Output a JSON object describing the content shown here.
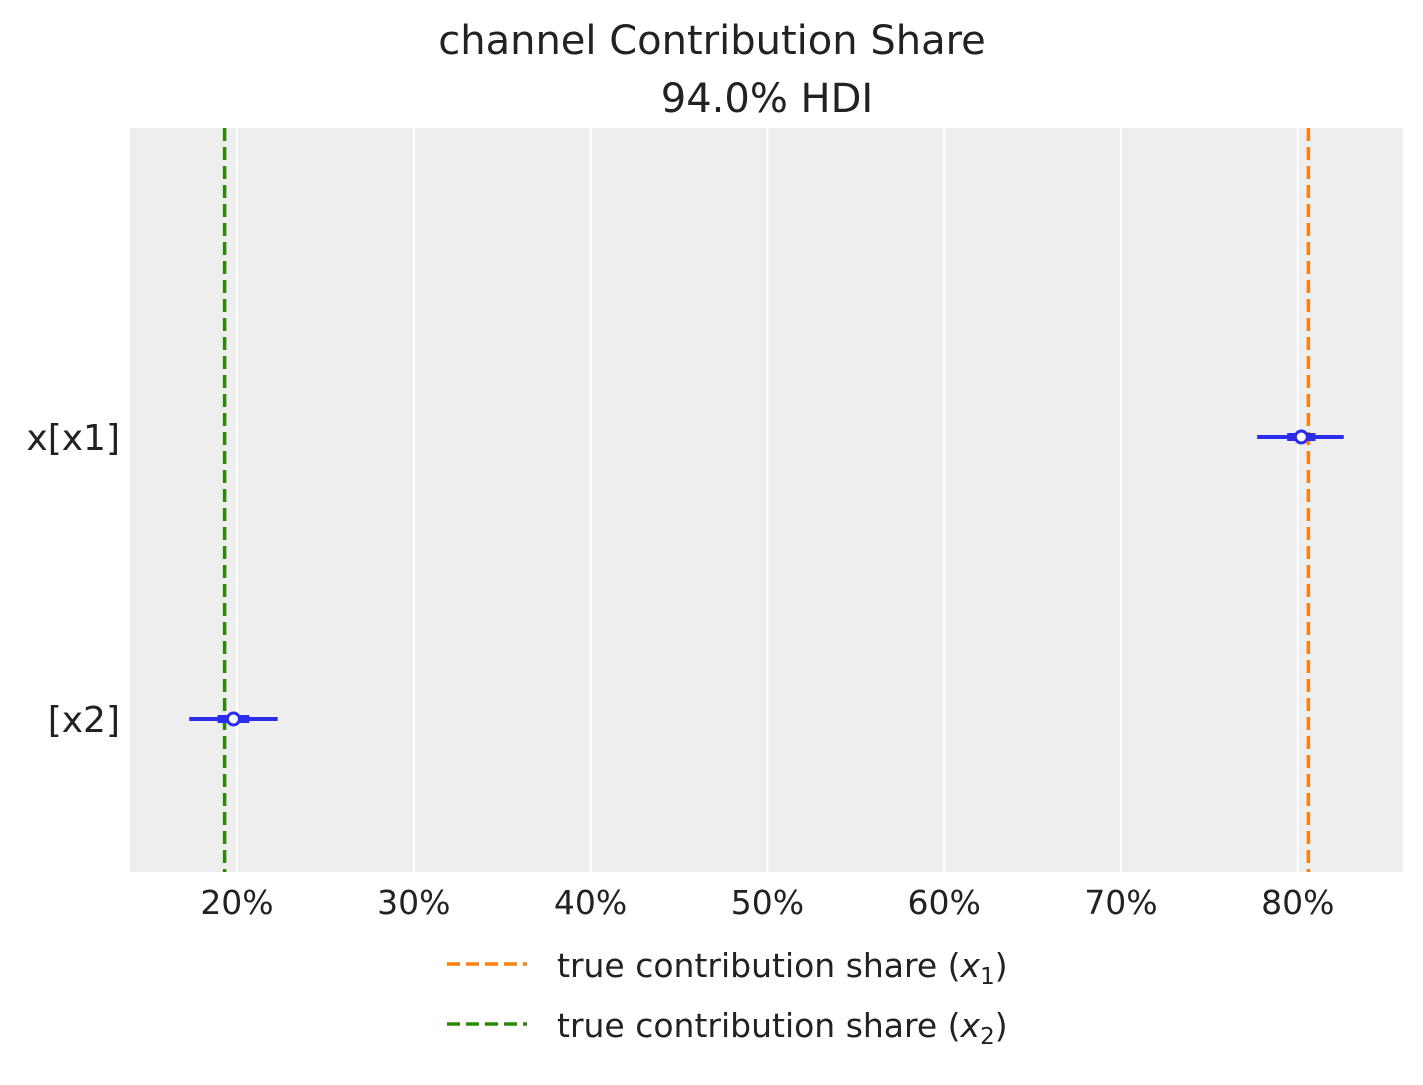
{
  "chart_data": {
    "type": "forest",
    "title": "channel Contribution Share",
    "subtitle": "94.0% HDI",
    "xlabel": "",
    "ylabel": "",
    "xlim": [
      14,
      86
    ],
    "xticks": [
      20,
      30,
      40,
      50,
      60,
      70,
      80
    ],
    "xtick_labels": [
      "20%",
      "30%",
      "40%",
      "50%",
      "60%",
      "70%",
      "80%"
    ],
    "grid": true,
    "rows": [
      {
        "label": "x[x1]",
        "mean": 80.2,
        "hdi_low": 77.7,
        "hdi_high": 82.6,
        "iqr_low": 79.4,
        "iqr_high": 81.0
      },
      {
        "label": "[x2]",
        "mean": 19.8,
        "hdi_low": 17.3,
        "hdi_high": 22.3,
        "iqr_low": 18.9,
        "iqr_high": 20.7
      }
    ],
    "reference_lines": [
      {
        "label": "true contribution share (x1)",
        "text": "true contribution share (",
        "var": "x",
        "sub": "1",
        "value": 80.6,
        "color": "#ff7f0e"
      },
      {
        "label": "true contribution share (x2)",
        "text": "true contribution share (",
        "var": "x",
        "sub": "2",
        "value": 19.3,
        "color": "#2a8a00"
      }
    ],
    "legend_placement": "bottom-center",
    "colors": {
      "estimate": "#2a2eec",
      "background": "#eeeeee",
      "grid": "#ffffff"
    }
  }
}
